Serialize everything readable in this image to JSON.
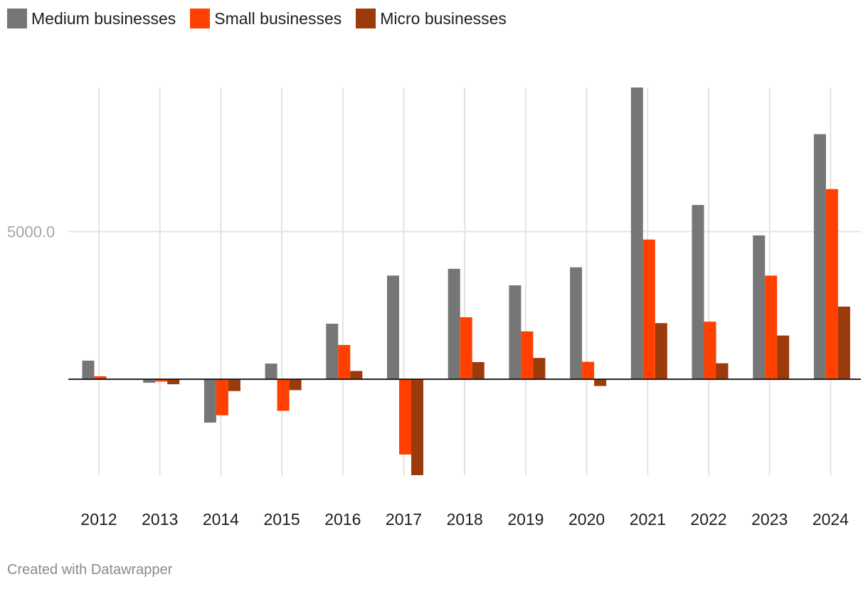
{
  "legend": [
    {
      "label": "Medium businesses",
      "color": "#767676"
    },
    {
      "label": "Small businesses",
      "color": "#ff4000"
    },
    {
      "label": "Micro businesses",
      "color": "#9b3a0b"
    }
  ],
  "credit": "Created with Datawrapper",
  "chart_data": {
    "type": "bar",
    "title": "",
    "xlabel": "",
    "ylabel": "",
    "categories": [
      "2012",
      "2013",
      "2014",
      "2015",
      "2016",
      "2017",
      "2018",
      "2019",
      "2020",
      "2021",
      "2022",
      "2023",
      "2024"
    ],
    "series": [
      {
        "name": "Medium businesses",
        "color": "#767676",
        "values": [
          630,
          -120,
          -1470,
          530,
          1880,
          3510,
          3740,
          3180,
          3790,
          9880,
          5900,
          4870,
          8300
        ]
      },
      {
        "name": "Small businesses",
        "color": "#ff4000",
        "values": [
          100,
          -80,
          -1220,
          -1070,
          1160,
          -2550,
          2100,
          1620,
          590,
          4730,
          1950,
          3510,
          6440
        ]
      },
      {
        "name": "Micro businesses",
        "color": "#9b3a0b",
        "values": [
          0,
          -170,
          -400,
          -370,
          280,
          -3250,
          580,
          720,
          -230,
          1900,
          540,
          1480,
          2460
        ]
      }
    ],
    "yticks": [
      {
        "value": 5000,
        "label": "5000.0"
      }
    ],
    "ylim": [
      -3250,
      9880
    ],
    "grid": true
  }
}
